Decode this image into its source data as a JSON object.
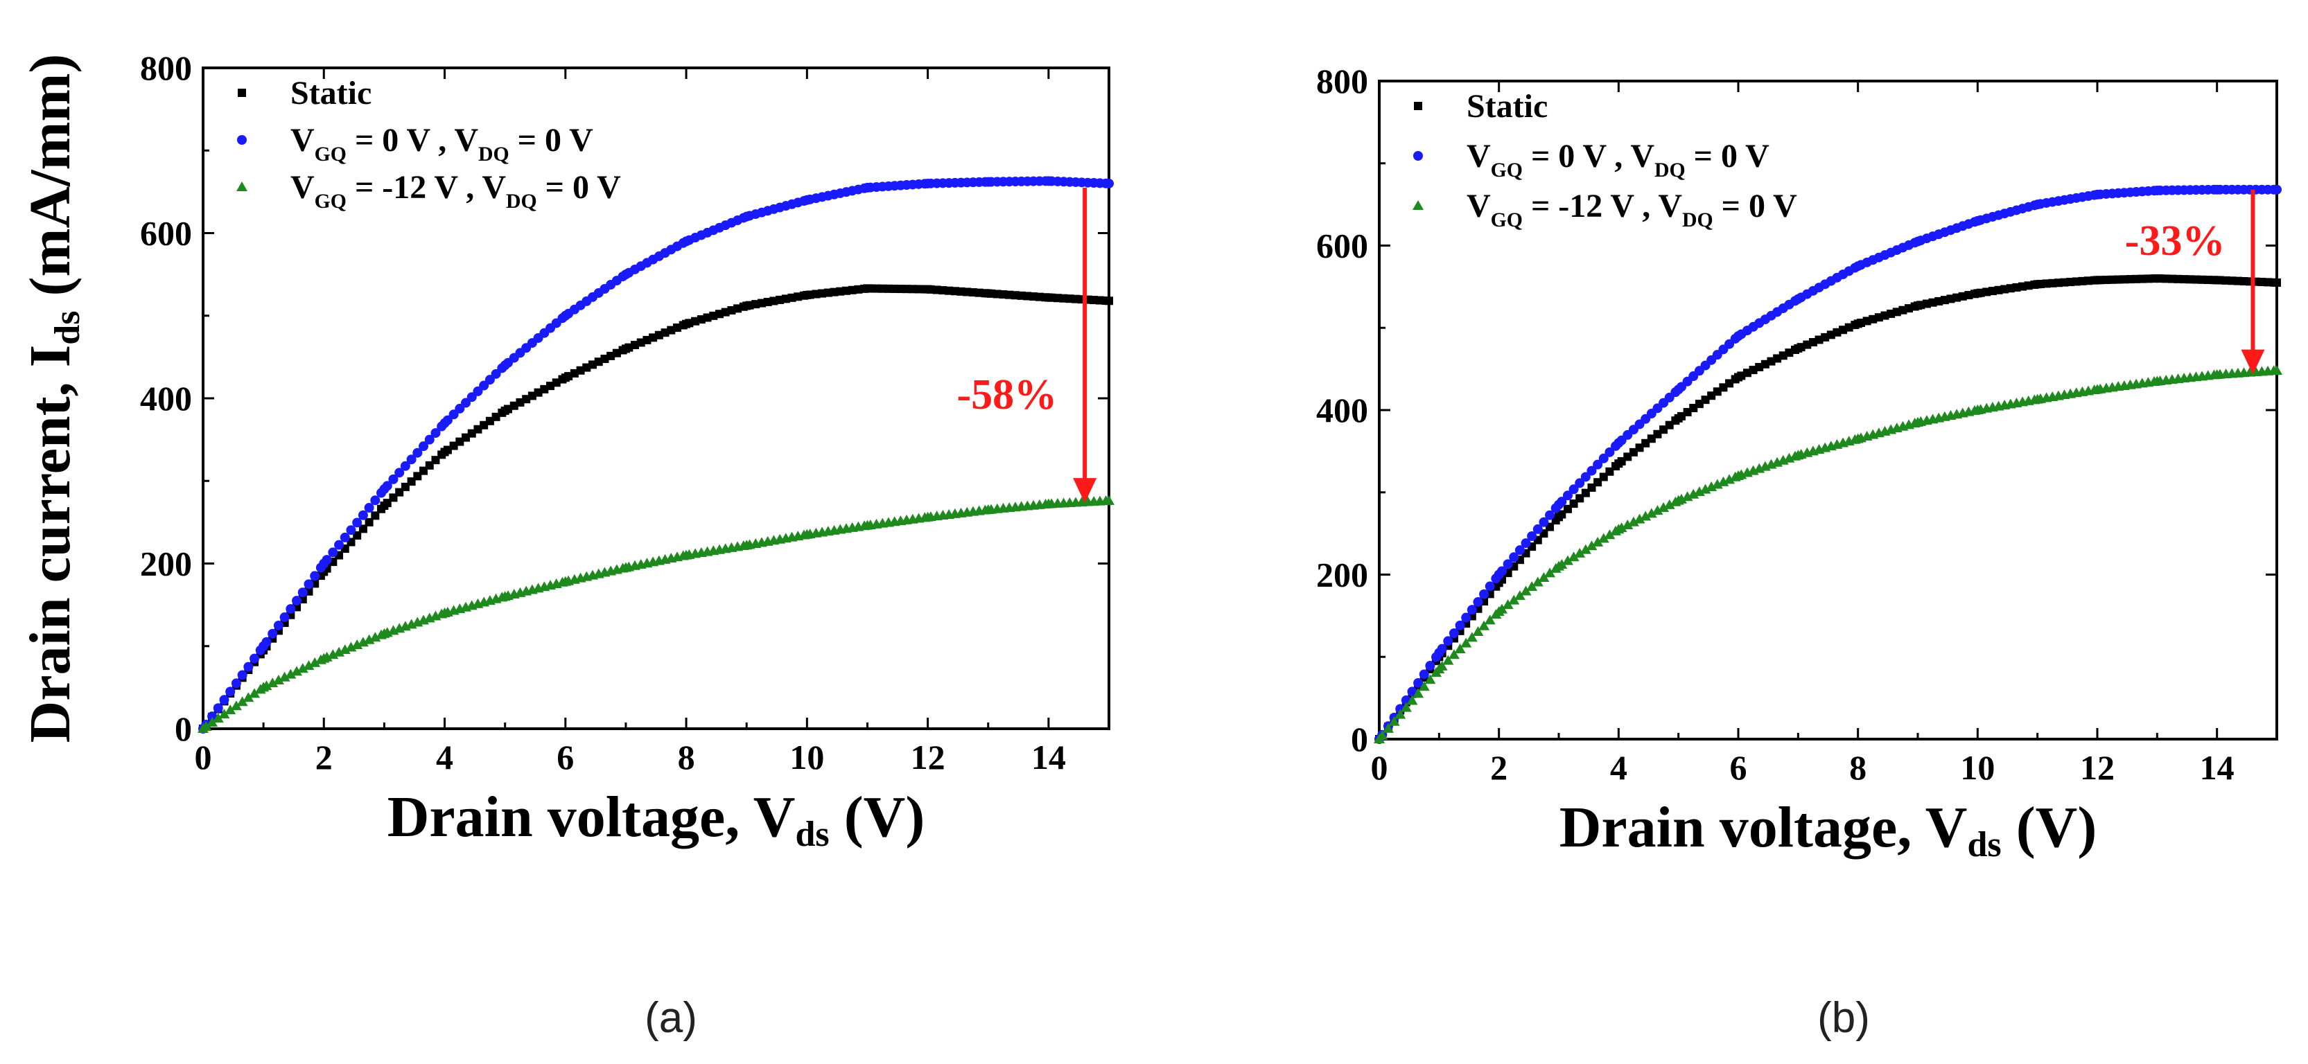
{
  "figure": {
    "panels": [
      {
        "caption": "(a)",
        "annotation": "-58%",
        "xlabel_main": "Drain voltage, V",
        "xlabel_sub": "ds",
        "xlabel_unit": "(V)",
        "ylabel_main": "Drain current, I",
        "ylabel_sub": "ds",
        "ylabel_unit": "(mA/mm)"
      },
      {
        "caption": "(b)",
        "annotation": "-33%",
        "xlabel_main": "Drain voltage, V",
        "xlabel_sub": "ds",
        "xlabel_unit": "(V)"
      }
    ],
    "legend": [
      {
        "key": "static",
        "text": "Static",
        "parts": []
      },
      {
        "key": "vgq0",
        "parts": [
          {
            "t": "V",
            "s": false
          },
          {
            "t": "GQ",
            "s": true
          },
          {
            "t": " = 0 V , V",
            "s": false
          },
          {
            "t": "DQ",
            "s": true
          },
          {
            "t": " = 0 V",
            "s": false
          }
        ]
      },
      {
        "key": "vgq12",
        "parts": [
          {
            "t": "V",
            "s": false
          },
          {
            "t": "GQ",
            "s": true
          },
          {
            "t": " = -12 V , V",
            "s": false
          },
          {
            "t": "DQ",
            "s": true
          },
          {
            "t": " = 0 V",
            "s": false
          }
        ]
      }
    ]
  },
  "colors": {
    "static": "#000000",
    "vgq0": "#1a1aff",
    "vgq12": "#1e8a1e",
    "arrow": "#ff1a1a"
  },
  "chart_data": [
    {
      "type": "scatter",
      "title": "",
      "xlabel": "Drain voltage, Vds (V)",
      "ylabel": "Drain current, Ids (mA/mm)",
      "xlim": [
        0,
        15
      ],
      "ylim": [
        0,
        800
      ],
      "xticks": [
        0,
        2,
        4,
        6,
        8,
        10,
        12,
        14
      ],
      "yticks": [
        0,
        200,
        400,
        600,
        800
      ],
      "legend_position": "top-left",
      "annotation": {
        "text": "-58%",
        "x": 14.6,
        "from_y": 655,
        "to_y": 275
      },
      "series": [
        {
          "name": "Static",
          "marker": "square",
          "x": [
            0,
            1,
            2,
            3,
            4,
            5,
            6,
            7,
            8,
            9,
            10,
            11,
            12,
            13,
            14,
            15
          ],
          "y": [
            0,
            95,
            190,
            270,
            335,
            385,
            425,
            460,
            490,
            512,
            525,
            533,
            532,
            527,
            522,
            518
          ]
        },
        {
          "name": "VGQ = 0 V , VDQ = 0 V",
          "marker": "circle",
          "x": [
            0,
            1,
            2,
            3,
            4,
            5,
            6,
            7,
            8,
            9,
            10,
            11,
            12,
            13,
            14,
            15
          ],
          "y": [
            0,
            100,
            200,
            290,
            370,
            440,
            500,
            550,
            590,
            620,
            640,
            655,
            660,
            662,
            663,
            660
          ]
        },
        {
          "name": "VGQ = -12 V , VDQ = 0 V",
          "marker": "triangle",
          "x": [
            0,
            1,
            2,
            3,
            4,
            5,
            6,
            7,
            8,
            9,
            10,
            11,
            12,
            13,
            14,
            15
          ],
          "y": [
            0,
            50,
            85,
            115,
            140,
            160,
            178,
            195,
            210,
            222,
            235,
            246,
            256,
            265,
            272,
            276
          ]
        }
      ]
    },
    {
      "type": "scatter",
      "title": "",
      "xlabel": "Drain voltage, Vds (V)",
      "ylabel": "",
      "xlim": [
        0,
        15
      ],
      "ylim": [
        0,
        800
      ],
      "xticks": [
        0,
        2,
        4,
        6,
        8,
        10,
        12,
        14
      ],
      "yticks": [
        0,
        200,
        400,
        600,
        800
      ],
      "legend_position": "top-left",
      "annotation": {
        "text": "-33%",
        "x": 14.6,
        "from_y": 668,
        "to_y": 445
      },
      "series": [
        {
          "name": "Static",
          "marker": "square",
          "x": [
            0,
            1,
            2,
            3,
            4,
            5,
            6,
            7,
            8,
            9,
            10,
            11,
            12,
            13,
            14,
            15
          ],
          "y": [
            0,
            100,
            190,
            270,
            335,
            390,
            440,
            475,
            505,
            527,
            542,
            553,
            558,
            560,
            558,
            555
          ]
        },
        {
          "name": "VGQ = 0 V , VDQ = 0 V",
          "marker": "circle",
          "x": [
            0,
            1,
            2,
            3,
            4,
            5,
            6,
            7,
            8,
            9,
            10,
            11,
            12,
            13,
            14,
            15
          ],
          "y": [
            0,
            105,
            200,
            285,
            360,
            425,
            490,
            535,
            575,
            605,
            630,
            650,
            662,
            667,
            668,
            668
          ]
        },
        {
          "name": "VGQ = -12 V , VDQ = 0 V",
          "marker": "triangle",
          "x": [
            0,
            1,
            2,
            3,
            4,
            5,
            6,
            7,
            8,
            9,
            10,
            11,
            12,
            13,
            14,
            15
          ],
          "y": [
            0,
            85,
            155,
            210,
            255,
            290,
            320,
            345,
            365,
            385,
            400,
            413,
            425,
            435,
            443,
            448
          ]
        }
      ]
    }
  ]
}
